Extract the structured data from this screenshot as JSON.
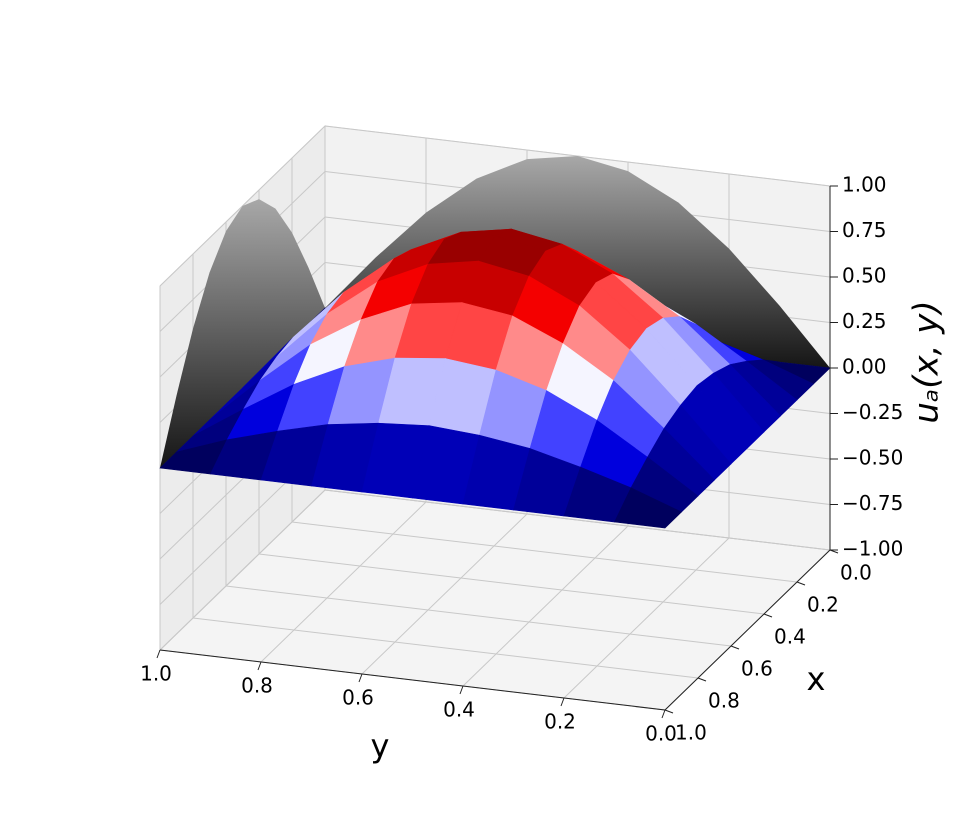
{
  "chart_data": {
    "type": "surface3d",
    "xlabel": "x",
    "ylabel": "y",
    "zlabel": "uₐ(x, y)",
    "x": [
      0,
      0.1,
      0.2,
      0.3,
      0.4,
      0.5,
      0.6,
      0.7,
      0.8,
      0.9,
      1
    ],
    "y": [
      0,
      0.1,
      0.2,
      0.3,
      0.4,
      0.5,
      0.6,
      0.7,
      0.8,
      0.9,
      1
    ],
    "z": [
      [
        0,
        0,
        0,
        0,
        0,
        0,
        0,
        0,
        0,
        0,
        0
      ],
      [
        0,
        0.1,
        0.18,
        0.25,
        0.29,
        0.31,
        0.29,
        0.25,
        0.18,
        0.1,
        0
      ],
      [
        0,
        0.18,
        0.35,
        0.48,
        0.56,
        0.59,
        0.56,
        0.48,
        0.35,
        0.18,
        0
      ],
      [
        0,
        0.25,
        0.48,
        0.65,
        0.77,
        0.81,
        0.77,
        0.65,
        0.48,
        0.25,
        0
      ],
      [
        0,
        0.29,
        0.56,
        0.77,
        0.9,
        0.95,
        0.9,
        0.77,
        0.56,
        0.29,
        0
      ],
      [
        0,
        0.31,
        0.59,
        0.81,
        0.95,
        1,
        0.95,
        0.81,
        0.59,
        0.31,
        0
      ],
      [
        0,
        0.29,
        0.56,
        0.77,
        0.9,
        0.95,
        0.9,
        0.77,
        0.56,
        0.29,
        0
      ],
      [
        0,
        0.25,
        0.48,
        0.65,
        0.77,
        0.81,
        0.77,
        0.65,
        0.48,
        0.25,
        0
      ],
      [
        0,
        0.18,
        0.35,
        0.48,
        0.56,
        0.59,
        0.56,
        0.48,
        0.35,
        0.18,
        0
      ],
      [
        0,
        0.1,
        0.18,
        0.25,
        0.29,
        0.31,
        0.29,
        0.25,
        0.18,
        0.1,
        0
      ],
      [
        0,
        0,
        0,
        0,
        0,
        0,
        0,
        0,
        0,
        0,
        0
      ]
    ],
    "colormap": [
      "#00004c",
      "#0000ff",
      "#ffffff",
      "#ff0000",
      "#800000"
    ],
    "clim": [
      0,
      1
    ],
    "projection_colors": [
      "#151515",
      "#a8a8a8"
    ],
    "xlim": [
      0,
      1
    ],
    "ylim": [
      0,
      1
    ],
    "zlim": [
      -1,
      1
    ],
    "xticks": [
      {
        "value": 0,
        "label": "0.0"
      },
      0.2,
      0.4,
      0.6,
      0.8,
      {
        "value": 1,
        "label": "1.0"
      }
    ],
    "yticks": [
      {
        "value": 0,
        "label": "0.0"
      },
      0.2,
      0.4,
      0.6,
      0.8,
      {
        "value": 1,
        "label": "1.0"
      }
    ],
    "zticks": [
      {
        "value": -1,
        "label": "−1.00"
      },
      {
        "value": -0.75,
        "label": "−0.75"
      },
      {
        "value": -0.5,
        "label": "−0.50"
      },
      {
        "value": -0.25,
        "label": "−0.25"
      },
      {
        "value": 0,
        "label": "0.00"
      },
      0.25,
      {
        "value": 0.5,
        "label": "0.50"
      },
      0.75,
      {
        "value": 1,
        "label": "1.00"
      }
    ],
    "grid": true
  }
}
